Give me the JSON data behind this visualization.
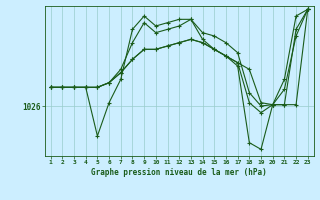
{
  "title": "Graphe pression niveau de la mer (hPa)",
  "background_color": "#cceeff",
  "grid_color": "#99cccc",
  "line_color": "#1a5c1a",
  "ytick_label": "1026",
  "ytick_value": 1026,
  "ymin": 1018.5,
  "ymax": 1041.0,
  "xmin": 0.5,
  "xmax": 23.5,
  "xticks": [
    1,
    2,
    3,
    4,
    5,
    6,
    7,
    8,
    9,
    10,
    11,
    12,
    13,
    14,
    15,
    16,
    17,
    18,
    19,
    20,
    21,
    22,
    23
  ],
  "line1": [
    1028.8,
    1028.8,
    1028.8,
    1028.8,
    1021.5,
    1026.5,
    1030.0,
    1037.5,
    1039.5,
    1038.0,
    1038.5,
    1039.0,
    1039.0,
    1037.0,
    1036.5,
    1035.5,
    1034.0,
    1028.0,
    1026.0,
    1026.2,
    1030.0,
    1039.5,
    1040.5
  ],
  "line2": [
    1028.8,
    1028.8,
    1028.8,
    1028.8,
    1028.8,
    1029.5,
    1031.0,
    1033.0,
    1034.5,
    1034.5,
    1035.0,
    1035.5,
    1036.0,
    1035.5,
    1034.5,
    1033.5,
    1032.5,
    1026.5,
    1025.0,
    1026.2,
    1026.2,
    1026.2,
    1040.5
  ],
  "line3": [
    1028.8,
    1028.8,
    1028.8,
    1028.8,
    1028.8,
    1029.5,
    1031.0,
    1033.0,
    1034.5,
    1034.5,
    1035.0,
    1035.5,
    1036.0,
    1035.5,
    1034.5,
    1033.5,
    1032.5,
    1031.5,
    1026.5,
    1026.2,
    1028.5,
    1036.5,
    1040.5
  ],
  "line4": [
    1028.8,
    1028.8,
    1028.8,
    1028.8,
    1028.8,
    1029.5,
    1031.5,
    1035.5,
    1038.5,
    1037.0,
    1037.5,
    1038.0,
    1039.0,
    1036.0,
    1034.5,
    1033.5,
    1032.0,
    1020.5,
    1019.5,
    1026.2,
    1026.2,
    1037.5,
    1040.5
  ]
}
